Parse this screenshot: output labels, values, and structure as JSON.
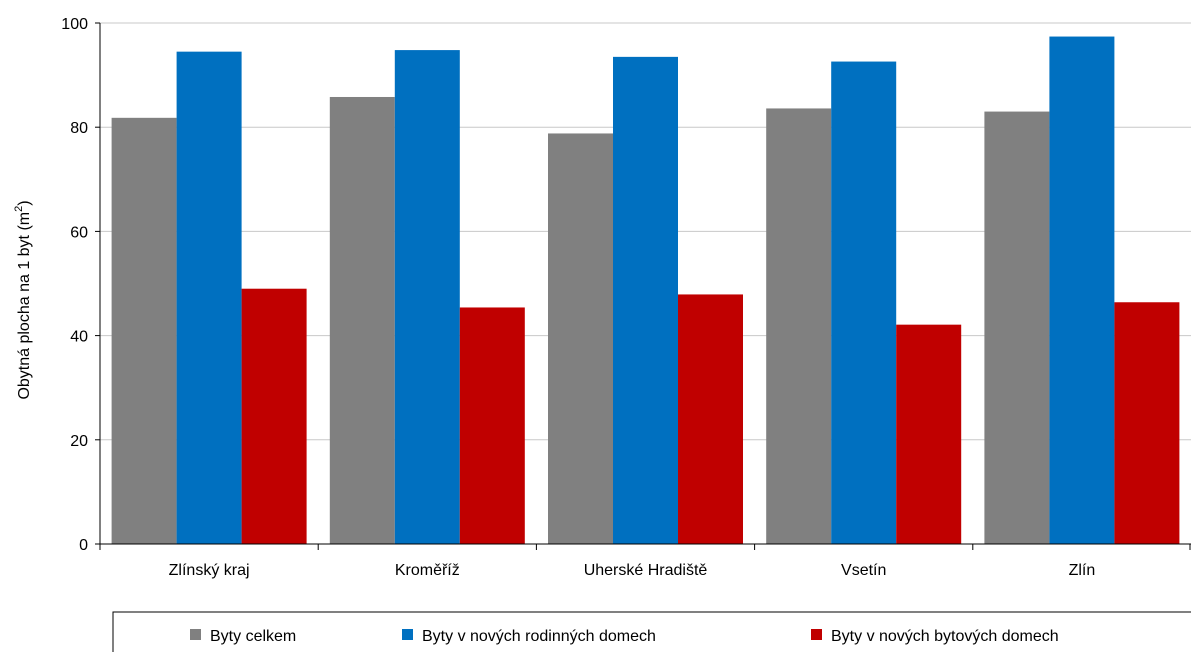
{
  "chart_data": {
    "type": "bar",
    "categories": [
      "Zlínský kraj",
      "Kroměříž",
      "Uherské Hradiště",
      "Vsetín",
      "Zlín"
    ],
    "series": [
      {
        "name": "Byty celkem",
        "color": "#808080",
        "values": [
          81.8,
          85.8,
          78.8,
          83.6,
          83.0
        ]
      },
      {
        "name": "Byty v nových rodinných domech",
        "color": "#0070C0",
        "values": [
          94.5,
          94.8,
          93.5,
          92.6,
          97.4
        ]
      },
      {
        "name": "Byty v nových bytových domech",
        "color": "#C00000",
        "values": [
          49.0,
          45.4,
          47.9,
          42.1,
          46.4
        ]
      }
    ],
    "ylim": [
      0,
      100
    ],
    "yticks": [
      0,
      20,
      40,
      60,
      80,
      100
    ],
    "ylabel_main": "Obytná plocha na 1 byt (m",
    "ylabel_sup": "2",
    "ylabel_end": ")",
    "xlabel": "",
    "grid": true,
    "legend_position": "bottom"
  }
}
